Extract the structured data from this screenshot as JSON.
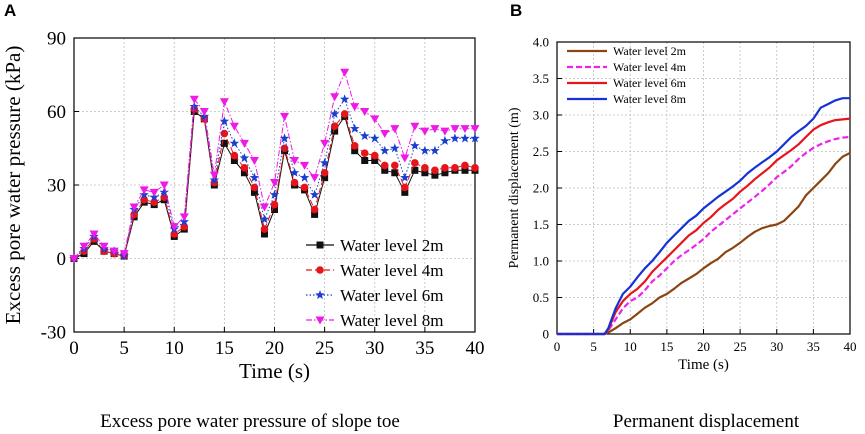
{
  "chart_data": [
    {
      "panel": "A",
      "type": "line",
      "caption": "Excess pore water pressure of slope toe",
      "xlabel": "Time (s)",
      "ylabel": "Excess pore water pressure (kPa)",
      "xlim": [
        0,
        40
      ],
      "ylim": [
        -30,
        90
      ],
      "xticks": [
        0,
        5,
        10,
        15,
        20,
        25,
        30,
        35,
        40
      ],
      "yticks": [
        -30,
        0,
        30,
        60,
        90
      ],
      "grid": true,
      "legend_position": "bottom-right",
      "x": [
        0,
        1,
        2,
        3,
        4,
        5,
        6,
        7,
        8,
        9,
        10,
        11,
        12,
        13,
        14,
        15,
        16,
        17,
        18,
        19,
        20,
        21,
        22,
        23,
        24,
        25,
        26,
        27,
        28,
        29,
        30,
        31,
        32,
        33,
        34,
        35,
        36,
        37,
        38,
        39,
        40
      ],
      "series": [
        {
          "name": "Water level 2m",
          "color": "#111111",
          "marker": "square",
          "dash": "solid",
          "values": [
            0,
            2,
            7,
            3,
            2,
            1,
            17,
            23,
            22,
            24,
            9,
            12,
            60,
            57,
            30,
            47,
            40,
            35,
            27,
            10,
            20,
            44,
            30,
            28,
            18,
            33,
            52,
            58,
            44,
            40,
            40,
            36,
            35,
            27,
            36,
            35,
            34,
            35,
            36,
            36,
            36
          ]
        },
        {
          "name": "Water level 4m",
          "color": "#e8141c",
          "marker": "circle",
          "dash": "dashed",
          "values": [
            0,
            3,
            8,
            3,
            2,
            1,
            18,
            24,
            23,
            25,
            10,
            13,
            61,
            57,
            31,
            51,
            42,
            37,
            29,
            12,
            22,
            45,
            31,
            29,
            20,
            35,
            54,
            59,
            46,
            43,
            42,
            38,
            38,
            29,
            39,
            37,
            36,
            37,
            37,
            38,
            37
          ]
        },
        {
          "name": "Water level 6m",
          "color": "#1a3fcf",
          "marker": "star",
          "dash": "dotted",
          "values": [
            0,
            4,
            9,
            4,
            3,
            1,
            20,
            26,
            25,
            27,
            12,
            15,
            62,
            58,
            32,
            56,
            47,
            41,
            33,
            16,
            26,
            49,
            35,
            33,
            26,
            39,
            59,
            65,
            53,
            50,
            49,
            44,
            45,
            33,
            46,
            44,
            44,
            48,
            49,
            49,
            49
          ]
        },
        {
          "name": "Water level 8m",
          "color": "#ee1ae6",
          "marker": "triangle-down",
          "dash": "dashdot",
          "values": [
            0,
            5,
            10,
            5,
            3,
            2,
            21,
            28,
            27,
            30,
            13,
            17,
            65,
            60,
            34,
            64,
            54,
            47,
            40,
            21,
            31,
            58,
            40,
            38,
            33,
            47,
            66,
            76,
            62,
            60,
            57,
            51,
            53,
            41,
            54,
            52,
            53,
            52,
            53,
            53,
            53
          ]
        }
      ]
    },
    {
      "panel": "B",
      "type": "line",
      "caption": "Permanent displacement",
      "xlabel": "Time (s)",
      "ylabel": "Permanent displacement (m)",
      "xlim": [
        0,
        40
      ],
      "ylim": [
        0,
        4.0
      ],
      "xticks": [
        0,
        5,
        10,
        15,
        20,
        25,
        30,
        35,
        40
      ],
      "yticks": [
        "0",
        "0.5",
        "1.0",
        "1.5",
        "2.0",
        "2.5",
        "3.0",
        "3.5",
        "4.0"
      ],
      "grid": true,
      "legend_position": "top-left",
      "x": [
        0,
        2,
        4,
        6,
        6.5,
        7,
        8,
        9,
        10,
        11,
        12,
        13,
        14,
        15,
        16,
        17,
        18,
        19,
        20,
        21,
        22,
        23,
        24,
        25,
        26,
        27,
        28,
        29,
        30,
        31,
        32,
        33,
        34,
        35,
        36,
        37,
        38,
        39,
        40
      ],
      "series": [
        {
          "name": "Water level 2m",
          "color": "#8b4513",
          "dash": "solid",
          "values": [
            0,
            0,
            0,
            0,
            0,
            0.02,
            0.08,
            0.15,
            0.2,
            0.28,
            0.36,
            0.42,
            0.5,
            0.55,
            0.62,
            0.7,
            0.76,
            0.82,
            0.9,
            0.97,
            1.03,
            1.12,
            1.18,
            1.25,
            1.33,
            1.4,
            1.45,
            1.48,
            1.5,
            1.55,
            1.65,
            1.75,
            1.9,
            2.0,
            2.1,
            2.2,
            2.33,
            2.43,
            2.48
          ]
        },
        {
          "name": "Water level 4m",
          "color": "#ee22ee",
          "dash": "dashed",
          "values": [
            0,
            0,
            0,
            0,
            0,
            0.05,
            0.2,
            0.35,
            0.45,
            0.5,
            0.6,
            0.72,
            0.8,
            0.9,
            1.0,
            1.08,
            1.15,
            1.22,
            1.3,
            1.4,
            1.48,
            1.56,
            1.64,
            1.72,
            1.8,
            1.88,
            1.96,
            2.05,
            2.15,
            2.22,
            2.3,
            2.4,
            2.48,
            2.55,
            2.6,
            2.64,
            2.67,
            2.69,
            2.7
          ]
        },
        {
          "name": "Water level 6m",
          "color": "#e8141c",
          "dash": "solid",
          "values": [
            0,
            0,
            0,
            0,
            0,
            0.06,
            0.3,
            0.45,
            0.55,
            0.62,
            0.72,
            0.85,
            0.95,
            1.05,
            1.15,
            1.25,
            1.35,
            1.42,
            1.52,
            1.6,
            1.7,
            1.78,
            1.85,
            1.95,
            2.03,
            2.12,
            2.2,
            2.28,
            2.38,
            2.45,
            2.52,
            2.6,
            2.7,
            2.8,
            2.86,
            2.9,
            2.93,
            2.94,
            2.95
          ]
        },
        {
          "name": "Water level 8m",
          "color": "#1432d6",
          "dash": "solid",
          "values": [
            0,
            0,
            0,
            0,
            0,
            0.08,
            0.35,
            0.55,
            0.65,
            0.78,
            0.9,
            1.0,
            1.12,
            1.25,
            1.35,
            1.45,
            1.55,
            1.62,
            1.72,
            1.8,
            1.88,
            1.95,
            2.02,
            2.1,
            2.2,
            2.28,
            2.35,
            2.42,
            2.5,
            2.6,
            2.7,
            2.78,
            2.85,
            2.95,
            3.1,
            3.15,
            3.2,
            3.23,
            3.23
          ]
        }
      ]
    }
  ]
}
